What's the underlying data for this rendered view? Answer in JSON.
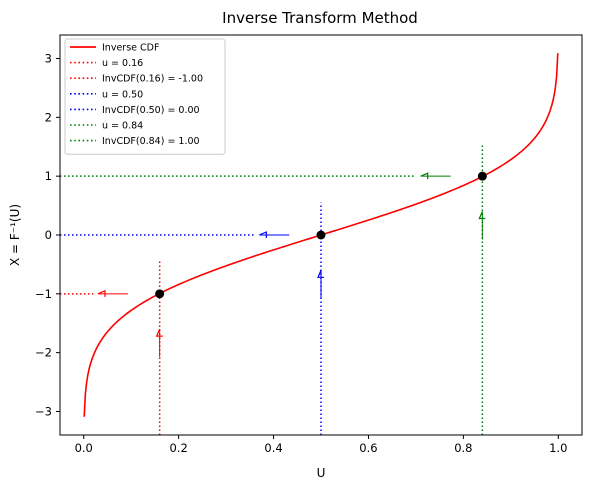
{
  "chart_data": {
    "type": "line",
    "title": "Inverse Transform Method",
    "xlabel": "U",
    "ylabel": "X = F⁻¹(U)",
    "xlim": [
      -0.05,
      1.05
    ],
    "ylim": [
      -3.4,
      3.4
    ],
    "xticks": [
      "0.0",
      "0.2",
      "0.4",
      "0.6",
      "0.8",
      "1.0"
    ],
    "yticks": [
      "−3",
      "−2",
      "−1",
      "0",
      "1",
      "2",
      "3"
    ],
    "grid": false,
    "legend_position": "top-left",
    "curve": {
      "name": "Inverse CDF",
      "color": "#ff0000",
      "u_range": [
        0.001,
        0.999
      ],
      "function": "inverse standard normal CDF"
    },
    "highlighted_points": [
      {
        "u": 0.16,
        "x": -1.0,
        "color": "#ff0000",
        "u_legend": "u = 0.16",
        "x_legend": "InvCDF(0.16) = -1.00"
      },
      {
        "u": 0.5,
        "x": 0.0,
        "color": "#0000ff",
        "u_legend": "u = 0.50",
        "x_legend": "InvCDF(0.50) = 0.00"
      },
      {
        "u": 0.84,
        "x": 1.0,
        "color": "#008000",
        "u_legend": "u = 0.84",
        "x_legend": "InvCDF(0.84) = 1.00"
      }
    ],
    "marker_color": "#000000"
  }
}
